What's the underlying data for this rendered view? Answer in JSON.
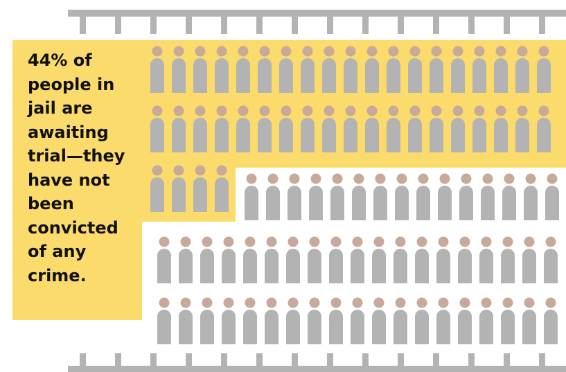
{
  "caption": "44% of\npeople in\njail are\nawaiting\ntrial—they\nhave not\nbeen\nconvicted\nof any\ncrime.",
  "stat": {
    "percent_awaiting_trial": 44
  },
  "pictogram": {
    "icon": "person-icon",
    "highlighted_count": 36,
    "colors": {
      "highlight": "#fbdb6c",
      "figure_body": "#b3b3b3",
      "figure_head": "#c7aa9a",
      "bars": "#b3b3b3"
    }
  }
}
